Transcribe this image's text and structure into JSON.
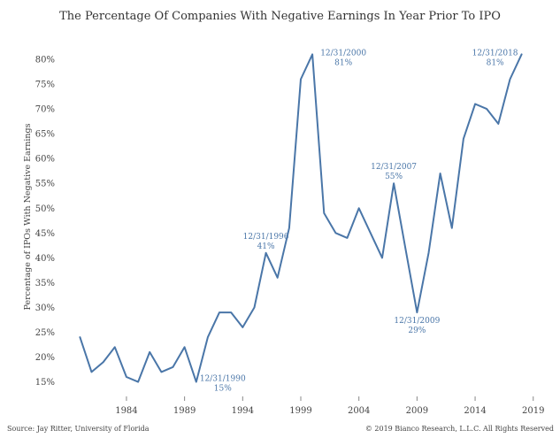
{
  "chart_data": {
    "type": "line",
    "title": "The Percentage Of Companies With Negative Earnings In Year Prior To IPO",
    "xlabel": "",
    "ylabel": "Percentage of IPOs With Negative Earnings",
    "x": [
      1980,
      1981,
      1982,
      1983,
      1984,
      1985,
      1986,
      1987,
      1988,
      1989,
      1990,
      1991,
      1992,
      1993,
      1994,
      1995,
      1996,
      1997,
      1998,
      1999,
      2000,
      2001,
      2002,
      2003,
      2004,
      2005,
      2006,
      2007,
      2008,
      2009,
      2010,
      2011,
      2012,
      2013,
      2014,
      2015,
      2016,
      2017,
      2018
    ],
    "series": [
      {
        "values": [
          24,
          17,
          19,
          22,
          16,
          15,
          21,
          17,
          18,
          22,
          15,
          24,
          29,
          29,
          26,
          30,
          41,
          36,
          46,
          76,
          81,
          49,
          45,
          44,
          50,
          45,
          40,
          55,
          42,
          29,
          41,
          57,
          46,
          64,
          71,
          70,
          67,
          76,
          81
        ],
        "color": "#4a76a8"
      }
    ],
    "xlim": [
      1978.6,
      2019.4
    ],
    "ylim": [
      13.5,
      82.5
    ],
    "x_ticks": [
      1984,
      1989,
      1994,
      1999,
      2004,
      2009,
      2014,
      2019
    ],
    "x_tick_labels": [
      "1984",
      "1989",
      "1994",
      "1999",
      "2004",
      "2009",
      "2014",
      "2019"
    ],
    "y_ticks": [
      15,
      20,
      25,
      30,
      35,
      40,
      45,
      50,
      55,
      60,
      65,
      70,
      75,
      80
    ],
    "y_tick_labels": [
      "15%",
      "20%",
      "25%",
      "30%",
      "35%",
      "40%",
      "45%",
      "50%",
      "55%",
      "60%",
      "65%",
      "70%",
      "75%",
      "80%"
    ],
    "grid": false,
    "annotations": [
      {
        "date": "12/31/1990",
        "value": "15%",
        "x": 1990,
        "y": 15,
        "anchor": "below-right"
      },
      {
        "date": "12/31/1996",
        "value": "41%",
        "x": 1996,
        "y": 41,
        "anchor": "above"
      },
      {
        "date": "12/31/2000",
        "value": "81%",
        "x": 2000,
        "y": 81,
        "anchor": "right"
      },
      {
        "date": "12/31/2007",
        "value": "55%",
        "x": 2007,
        "y": 55,
        "anchor": "above"
      },
      {
        "date": "12/31/2009",
        "value": "29%",
        "x": 2009,
        "y": 29,
        "anchor": "below"
      },
      {
        "date": "12/31/2018",
        "value": "81%",
        "x": 2018,
        "y": 81,
        "anchor": "left"
      }
    ]
  },
  "footer": {
    "source": "Source: Jay Ritter, University of Florida",
    "copyright": "© 2019 Bianco Research, L.L.C. All Rights Reserved"
  }
}
